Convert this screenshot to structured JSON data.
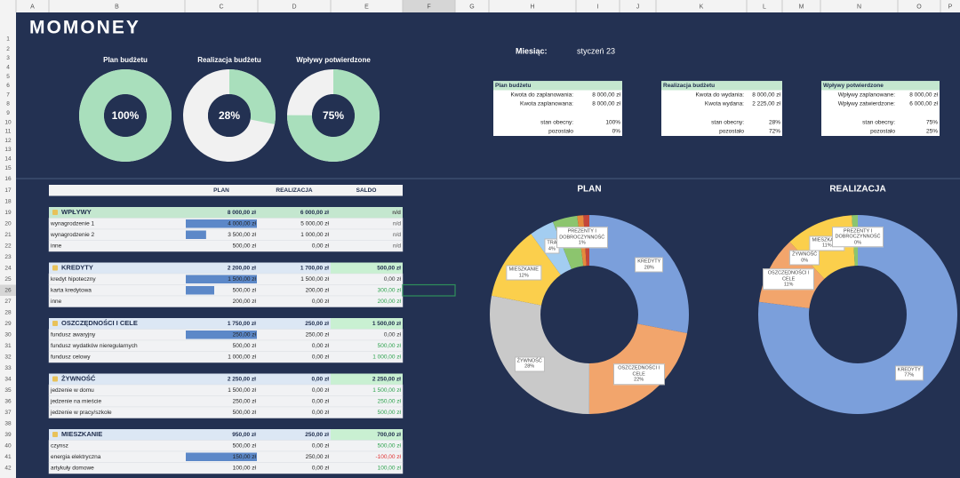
{
  "columns": [
    "A",
    "B",
    "C",
    "D",
    "E",
    "F",
    "G",
    "H",
    "I",
    "J",
    "K",
    "L",
    "M",
    "N",
    "O",
    "P"
  ],
  "rows": [
    1,
    2,
    3,
    4,
    5,
    6,
    7,
    8,
    9,
    10,
    11,
    12,
    13,
    14,
    15,
    16,
    17,
    18,
    19,
    20,
    21,
    22,
    23,
    24,
    25,
    26,
    27,
    28,
    29,
    30,
    31,
    32,
    33,
    34,
    35,
    36,
    37,
    38,
    39,
    40,
    41,
    42
  ],
  "logo": "MOMONEY",
  "gauges": [
    {
      "title": "Plan budżetu",
      "value": 100,
      "value_label": "100%"
    },
    {
      "title": "Realizacja budżetu",
      "value": 28,
      "value_label": "28%"
    },
    {
      "title": "Wpływy potwierdzone",
      "value": 75,
      "value_label": "75%"
    }
  ],
  "month": {
    "label": "Miesiąc:",
    "value": "styczeń 23"
  },
  "summaries": [
    {
      "title": "Plan budżetu",
      "rows": [
        [
          "Kwota do zaplanowania:",
          "8 000,00 zł"
        ],
        [
          "Kwota zaplanowana:",
          "8 000,00 zł"
        ],
        [
          "stan obecny:",
          "100%"
        ],
        [
          "pozostało",
          "0%"
        ]
      ]
    },
    {
      "title": "Realizacja budżetu",
      "rows": [
        [
          "Kwota do wydania:",
          "8 000,00 zł"
        ],
        [
          "Kwota wydana:",
          "2 225,00 zł"
        ],
        [
          "stan obecny:",
          "28%"
        ],
        [
          "pozostało",
          "72%"
        ]
      ]
    },
    {
      "title": "Wpływy potwierdzone",
      "rows": [
        [
          "Wpływy zaplanowane:",
          "8 000,00 zł"
        ],
        [
          "Wpływy zatwierdzone:",
          "6 000,00 zł"
        ],
        [
          "stan obecny:",
          "75%"
        ],
        [
          "pozostało",
          "25%"
        ]
      ]
    }
  ],
  "table": {
    "header": [
      "PLAN",
      "REALIZACJA",
      "SALDO"
    ],
    "sections": [
      {
        "name": "WPŁYWY",
        "plan": "8 000,00 zł",
        "realizacja": "6 000,00 zł",
        "saldo": "n/d",
        "items": [
          [
            "wynagrodzenie 1",
            "4 000,00 zł",
            "5 000,00 zł",
            "n/d"
          ],
          [
            "wynagrodzenie 2",
            "3 500,00 zł",
            "1 000,00 zł",
            "n/d"
          ],
          [
            "inne",
            "500,00 zł",
            "0,00 zł",
            "n/d"
          ]
        ]
      },
      {
        "name": "KREDYTY",
        "plan": "2 200,00 zł",
        "realizacja": "1 700,00 zł",
        "saldo": "500,00 zł",
        "items": [
          [
            "kredyt hipoteczny",
            "1 500,00 zł",
            "1 500,00 zł",
            "0,00 zł"
          ],
          [
            "karta kredytowa",
            "500,00 zł",
            "200,00 zł",
            "300,00 zł"
          ],
          [
            "inne",
            "200,00 zł",
            "0,00 zł",
            "200,00 zł"
          ]
        ]
      },
      {
        "name": "OSZCZĘDNOŚCI I CELE",
        "plan": "1 750,00 zł",
        "realizacja": "250,00 zł",
        "saldo": "1 500,00 zł",
        "items": [
          [
            "fundusz awaryjny",
            "250,00 zł",
            "250,00 zł",
            "0,00 zł"
          ],
          [
            "fundusz wydatków nieregularnych",
            "500,00 zł",
            "0,00 zł",
            "500,00 zł"
          ],
          [
            "fundusz celowy",
            "1 000,00 zł",
            "0,00 zł",
            "1 000,00 zł"
          ]
        ]
      },
      {
        "name": "ŻYWNOŚĆ",
        "plan": "2 250,00 zł",
        "realizacja": "0,00 zł",
        "saldo": "2 250,00 zł",
        "items": [
          [
            "jedzenie w domu",
            "1 500,00 zł",
            "0,00 zł",
            "1 500,00 zł"
          ],
          [
            "jedzenie na mieście",
            "250,00 zł",
            "0,00 zł",
            "250,00 zł"
          ],
          [
            "jedzenie w pracy/szkole",
            "500,00 zł",
            "0,00 zł",
            "500,00 zł"
          ]
        ]
      },
      {
        "name": "MIESZKANIE",
        "plan": "950,00 zł",
        "realizacja": "250,00 zł",
        "saldo": "700,00 zł",
        "items": [
          [
            "czynsz",
            "500,00 zł",
            "0,00 zł",
            "500,00 zł"
          ],
          [
            "energia elektryczna",
            "150,00 zł",
            "250,00 zł",
            "-100,00 zł"
          ],
          [
            "artykuły domowe",
            "100,00 zł",
            "0,00 zł",
            "100,00 zł"
          ]
        ]
      }
    ]
  },
  "chart_data": [
    {
      "type": "pie",
      "title": "PLAN",
      "categories": [
        "KREDYTY",
        "OSZCZĘDNOŚCI I CELE",
        "ŻYWNOŚĆ",
        "MIESZKANIE",
        "TRA",
        null,
        "PREZENTY I DOBROCZYNNOŚĆ",
        null
      ],
      "values": [
        28,
        22,
        28,
        12,
        4,
        4,
        1,
        1
      ],
      "value_labels": [
        "28%",
        "22%",
        "28%",
        "12%",
        "4%",
        null,
        "1%",
        null
      ],
      "colors": [
        "#7b9fdb",
        "#f2a56c",
        "#c9c9c9",
        "#fbcf4c",
        "#a3cdf1",
        "#8cc56e",
        "#e58a3c",
        "#c4473a"
      ]
    },
    {
      "type": "pie",
      "title": "REALIZACJA",
      "categories": [
        "KREDYTY",
        "OSZCZĘDNOŚCI I CELE",
        "ŻYWNOŚĆ",
        "MIESZKANIE",
        null,
        "PREZENTY I DOBROCZYNNOŚĆ"
      ],
      "values": [
        77,
        11,
        0,
        11,
        1,
        0
      ],
      "value_labels": [
        "77%",
        "11%",
        "0%",
        "11%",
        null,
        "0%"
      ],
      "colors": [
        "#7b9fdb",
        "#f2a56c",
        "#c9c9c9",
        "#fbcf4c",
        "#8cc56e",
        "#e58a3c"
      ]
    }
  ]
}
